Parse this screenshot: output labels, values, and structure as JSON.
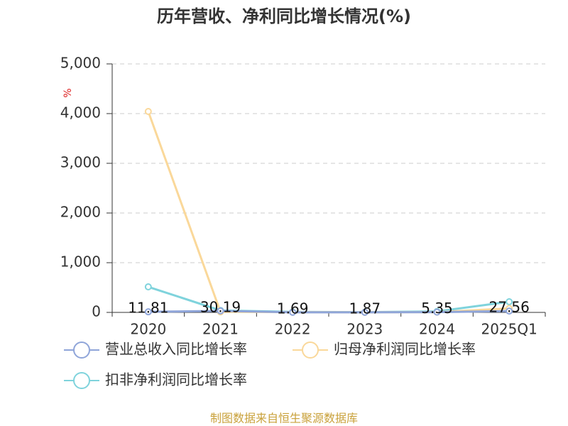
{
  "chart_data": {
    "type": "line",
    "title": "历年营收、净利同比增长情况(%)",
    "y_unit": "%",
    "source": "制图数据来自恒生聚源数据库",
    "categories": [
      "2020",
      "2021",
      "2022",
      "2023",
      "2024",
      "2025Q1"
    ],
    "series": [
      {
        "name": "营业总收入同比增长率",
        "color": "#8fa5d9",
        "values": [
          11.81,
          30.19,
          1.69,
          1.87,
          5.35,
          27.56
        ]
      },
      {
        "name": "归母净利润同比增长率",
        "color": "#fad89a",
        "values": [
          4043,
          10,
          5,
          3,
          5,
          80
        ]
      },
      {
        "name": "扣非净利润同比增长率",
        "color": "#7fd3dc",
        "values": [
          514,
          40,
          10,
          5,
          20,
          214
        ]
      }
    ],
    "ylim": [
      0,
      5000
    ],
    "yticks": [
      0,
      {
        "value": 1000,
        "label": "1,000"
      },
      {
        "value": 2000,
        "label": "2,000"
      },
      {
        "value": 3000,
        "label": "3,000"
      },
      {
        "value": 4000,
        "label": "4,000"
      },
      {
        "value": 5000,
        "label": "5,000"
      }
    ],
    "grid": true
  }
}
